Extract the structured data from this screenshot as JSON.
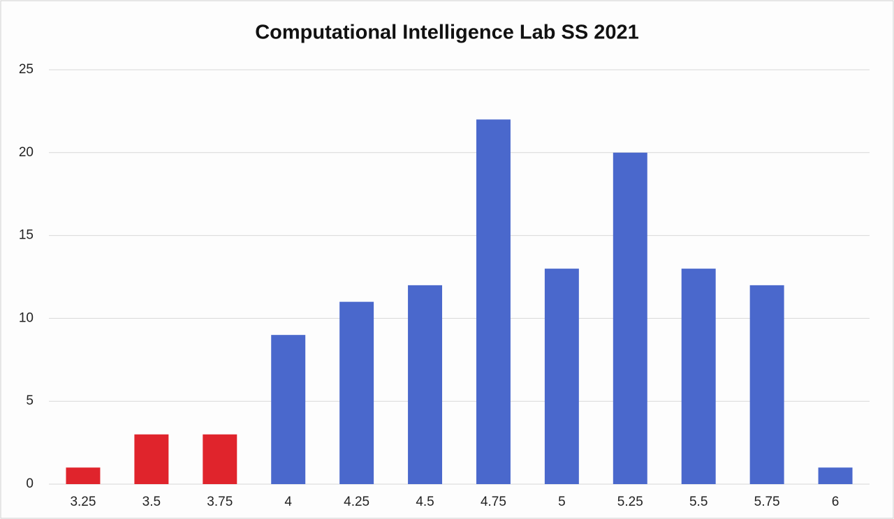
{
  "chart_data": {
    "type": "bar",
    "title": "Computational Intelligence Lab SS 2021",
    "categories": [
      "3.25",
      "3.5",
      "3.75",
      "4",
      "4.25",
      "4.5",
      "4.75",
      "5",
      "5.25",
      "5.5",
      "5.75",
      "6"
    ],
    "values": [
      1,
      3,
      3,
      9,
      11,
      12,
      22,
      13,
      20,
      13,
      12,
      1
    ],
    "colors": [
      "#e0242c",
      "#e0242c",
      "#e0242c",
      "#4a68cc",
      "#4a68cc",
      "#4a68cc",
      "#4a68cc",
      "#4a68cc",
      "#4a68cc",
      "#4a68cc",
      "#4a68cc",
      "#4a68cc"
    ],
    "ylim": [
      0,
      25
    ],
    "yticks": [
      0,
      5,
      10,
      15,
      20,
      25
    ],
    "grid": true
  }
}
